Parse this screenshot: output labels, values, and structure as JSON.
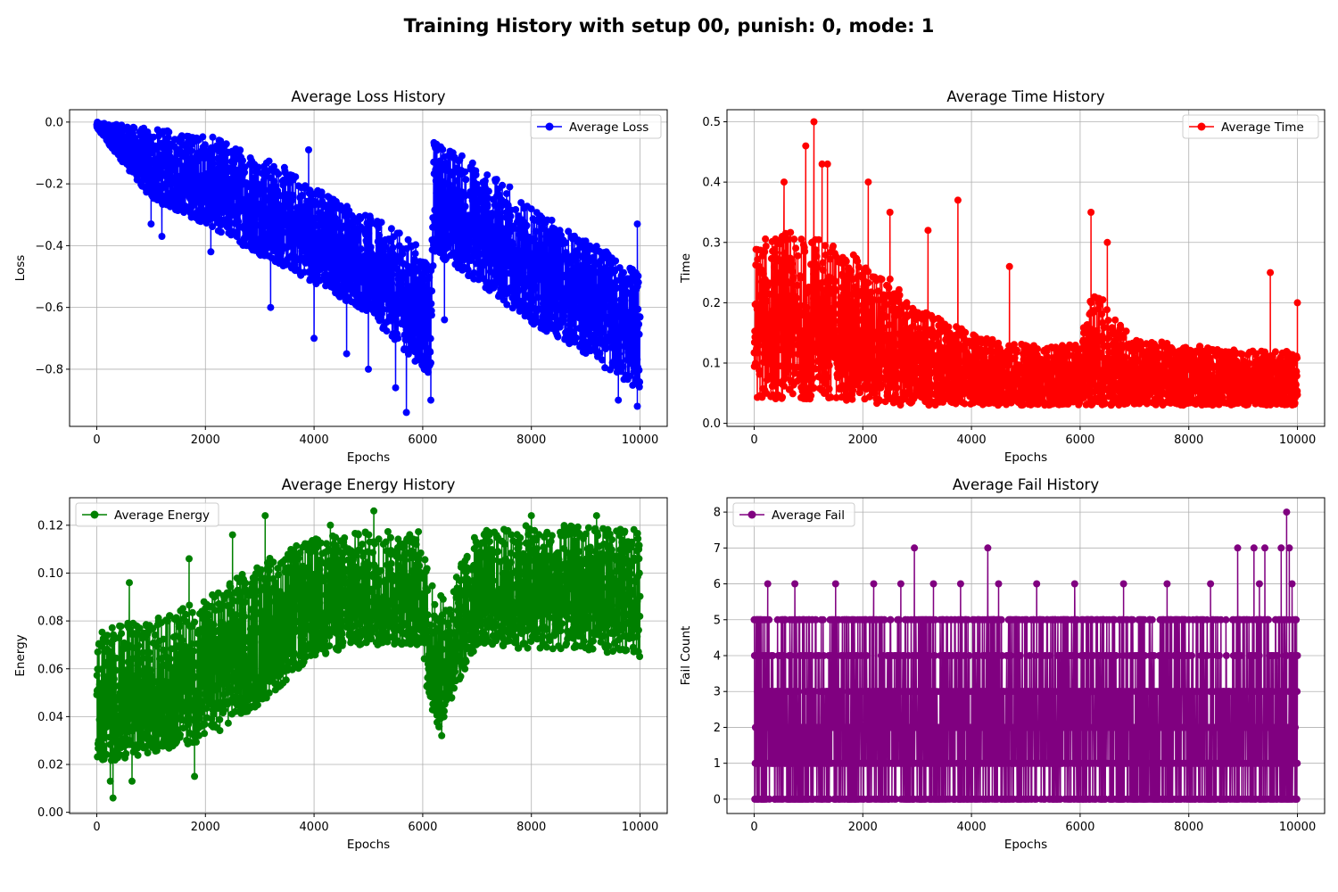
{
  "figure": {
    "suptitle": "Training History with setup 00, punish: 0, mode: 1"
  },
  "chart_data": [
    {
      "type": "line",
      "title": "Average Loss History",
      "xlabel": "Epochs",
      "ylabel": "Loss",
      "xlim": [
        -500,
        10500
      ],
      "ylim": [
        -0.985,
        0.04
      ],
      "xticks": [
        0,
        2000,
        4000,
        6000,
        8000,
        10000
      ],
      "xtick_labels": [
        "0",
        "2000",
        "4000",
        "6000",
        "8000",
        "10000"
      ],
      "yticks": [
        0.0,
        -0.2,
        -0.4,
        -0.6,
        -0.8
      ],
      "ytick_labels": [
        "0.0",
        "−0.2",
        "−0.4",
        "−0.6",
        "−0.8"
      ],
      "grid": true,
      "legend_position": "upper right",
      "color": "#0000ff",
      "marker": "circle",
      "series": [
        {
          "name": "Average Loss",
          "trend_x": [
            0,
            1000,
            2000,
            3000,
            4000,
            5000,
            6000,
            6150,
            6200,
            7000,
            8000,
            9000,
            10000
          ],
          "band_upper": [
            0.0,
            -0.02,
            -0.04,
            -0.1,
            -0.2,
            -0.3,
            -0.4,
            -0.5,
            -0.05,
            -0.13,
            -0.28,
            -0.38,
            -0.48
          ],
          "band_lower": [
            -0.02,
            -0.25,
            -0.33,
            -0.43,
            -0.52,
            -0.62,
            -0.8,
            -0.82,
            -0.42,
            -0.52,
            -0.65,
            -0.75,
            -0.88
          ],
          "peaks": [
            [
              1000,
              -0.33
            ],
            [
              1200,
              -0.37
            ],
            [
              2100,
              -0.42
            ],
            [
              3200,
              -0.6
            ],
            [
              3900,
              -0.09
            ],
            [
              4000,
              -0.7
            ],
            [
              4600,
              -0.75
            ],
            [
              5000,
              -0.8
            ],
            [
              5500,
              -0.86
            ],
            [
              5700,
              -0.94
            ],
            [
              6150,
              -0.9
            ],
            [
              6400,
              -0.64
            ],
            [
              7600,
              -0.21
            ],
            [
              9600,
              -0.9
            ],
            [
              9950,
              -0.92
            ],
            [
              9950,
              -0.33
            ]
          ]
        }
      ]
    },
    {
      "type": "line",
      "title": "Average Time History",
      "xlabel": "Epochs",
      "ylabel": "Time",
      "xlim": [
        -500,
        10500
      ],
      "ylim": [
        -0.005,
        0.52
      ],
      "xticks": [
        0,
        2000,
        4000,
        6000,
        8000,
        10000
      ],
      "xtick_labels": [
        "0",
        "2000",
        "4000",
        "6000",
        "8000",
        "10000"
      ],
      "yticks": [
        0.0,
        0.1,
        0.2,
        0.3,
        0.4,
        0.5
      ],
      "ytick_labels": [
        "0.0",
        "0.1",
        "0.2",
        "0.3",
        "0.4",
        "0.5"
      ],
      "grid": true,
      "legend_position": "upper right",
      "color": "#ff0000",
      "marker": "circle",
      "series": [
        {
          "name": "Average Time",
          "trend_x": [
            0,
            500,
            1000,
            1500,
            2000,
            2500,
            3000,
            4000,
            5000,
            6000,
            6200,
            6500,
            7000,
            8000,
            9000,
            10000
          ],
          "band_upper": [
            0.3,
            0.32,
            0.31,
            0.3,
            0.27,
            0.24,
            0.19,
            0.15,
            0.13,
            0.13,
            0.22,
            0.2,
            0.14,
            0.13,
            0.12,
            0.12
          ],
          "band_lower": [
            0.04,
            0.04,
            0.04,
            0.04,
            0.035,
            0.03,
            0.03,
            0.03,
            0.03,
            0.03,
            0.03,
            0.03,
            0.03,
            0.03,
            0.03,
            0.03
          ],
          "peaks": [
            [
              1100,
              0.5
            ],
            [
              950,
              0.46
            ],
            [
              1250,
              0.43
            ],
            [
              1350,
              0.43
            ],
            [
              550,
              0.4
            ],
            [
              2100,
              0.4
            ],
            [
              3750,
              0.37
            ],
            [
              6200,
              0.35
            ],
            [
              2500,
              0.35
            ],
            [
              3200,
              0.32
            ],
            [
              6500,
              0.3
            ],
            [
              9500,
              0.25
            ],
            [
              4700,
              0.26
            ],
            [
              10000,
              0.2
            ]
          ]
        }
      ]
    },
    {
      "type": "line",
      "title": "Average Energy History",
      "xlabel": "Epochs",
      "ylabel": "Energy",
      "xlim": [
        -500,
        10500
      ],
      "ylim": [
        -0.0005,
        0.1315
      ],
      "xticks": [
        0,
        2000,
        4000,
        6000,
        8000,
        10000
      ],
      "xtick_labels": [
        "0",
        "2000",
        "4000",
        "6000",
        "8000",
        "10000"
      ],
      "yticks": [
        0.0,
        0.02,
        0.04,
        0.06,
        0.08,
        0.1,
        0.12
      ],
      "ytick_labels": [
        "0.00",
        "0.02",
        "0.04",
        "0.06",
        "0.08",
        "0.10",
        "0.12"
      ],
      "grid": true,
      "legend_position": "upper left",
      "color": "#008000",
      "marker": "circle",
      "series": [
        {
          "name": "Average Energy",
          "trend_x": [
            0,
            1000,
            2000,
            3000,
            4000,
            5000,
            6000,
            6100,
            6300,
            6500,
            7000,
            8000,
            9000,
            10000
          ],
          "band_upper": [
            0.078,
            0.08,
            0.09,
            0.105,
            0.115,
            0.118,
            0.118,
            0.1,
            0.09,
            0.095,
            0.118,
            0.12,
            0.12,
            0.118
          ],
          "band_lower": [
            0.02,
            0.025,
            0.03,
            0.045,
            0.065,
            0.07,
            0.07,
            0.045,
            0.035,
            0.045,
            0.07,
            0.068,
            0.068,
            0.065
          ],
          "peaks": [
            [
              300,
              0.006
            ],
            [
              650,
              0.013
            ],
            [
              1800,
              0.015
            ],
            [
              250,
              0.013
            ],
            [
              3100,
              0.124
            ],
            [
              5100,
              0.126
            ],
            [
              8000,
              0.124
            ],
            [
              9200,
              0.124
            ],
            [
              6350,
              0.032
            ],
            [
              4300,
              0.12
            ],
            [
              1700,
              0.106
            ],
            [
              2500,
              0.116
            ],
            [
              600,
              0.096
            ]
          ]
        }
      ]
    },
    {
      "type": "line",
      "title": "Average Fail History",
      "xlabel": "Epochs",
      "ylabel": "Fail Count",
      "xlim": [
        -500,
        10500
      ],
      "ylim": [
        -0.4,
        8.4
      ],
      "xticks": [
        0,
        2000,
        4000,
        6000,
        8000,
        10000
      ],
      "xtick_labels": [
        "0",
        "2000",
        "4000",
        "6000",
        "8000",
        "10000"
      ],
      "yticks": [
        0,
        1,
        2,
        3,
        4,
        5,
        6,
        7,
        8
      ],
      "ytick_labels": [
        "0",
        "1",
        "2",
        "3",
        "4",
        "5",
        "6",
        "7",
        "8"
      ],
      "grid": true,
      "legend_position": "upper left",
      "color": "#800080",
      "marker": "circle",
      "series": [
        {
          "name": "Average Fail",
          "values_range": [
            0,
            8
          ],
          "peaks": [
            [
              2950,
              7
            ],
            [
              4300,
              7
            ],
            [
              8900,
              7
            ],
            [
              9200,
              7
            ],
            [
              9700,
              7
            ],
            [
              9800,
              8
            ],
            [
              9850,
              7
            ],
            [
              9400,
              7
            ]
          ],
          "six_x": [
            250,
            750,
            1500,
            2200,
            2700,
            3300,
            3800,
            4500,
            5200,
            5900,
            6800,
            7600,
            8400,
            9300,
            9900
          ]
        }
      ]
    }
  ]
}
